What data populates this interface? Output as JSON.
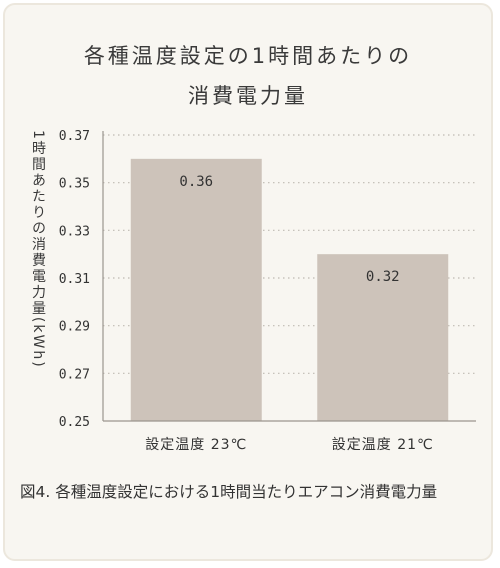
{
  "chart_data": {
    "type": "bar",
    "title_lines": [
      "各種温度設定の1時間あたりの",
      "消費電力量"
    ],
    "ylabel": "1時間あたりの消費電力量(kWh)",
    "xlabel": "",
    "categories": [
      "設定温度 23℃",
      "設定温度 21℃"
    ],
    "values": [
      0.36,
      0.32
    ],
    "data_labels": [
      "0.36",
      "0.32"
    ],
    "yticks": [
      "0.37",
      "0.35",
      "0.33",
      "0.31",
      "0.29",
      "0.27",
      "0.25"
    ],
    "ylim": [
      0.25,
      0.37
    ],
    "grid": true,
    "legend": "none",
    "colors": {
      "bar": "#cdc3ba",
      "grid": "#bfbab2",
      "axis": "#9a958e",
      "text": "#333333",
      "card_bg": "#f8f6f1"
    }
  },
  "caption": "図4. 各種温度設定における1時間当たりエアコン消費電力量"
}
